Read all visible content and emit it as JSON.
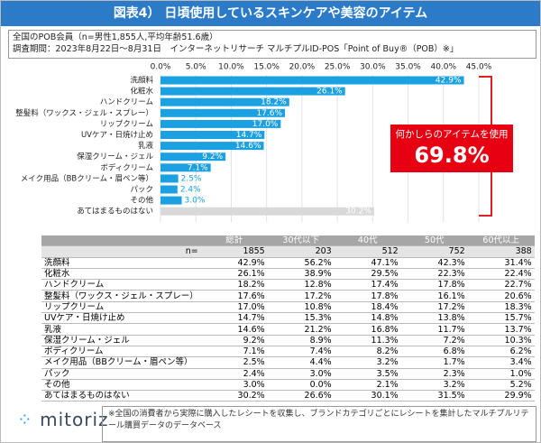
{
  "header": {
    "title": "図表4） 日頃使用しているスキンケアや美容のアイテム"
  },
  "subtitle_lines": [
    "全国のPOB会員（n=男性1,855人,平均年齢51.6歳）",
    "調査期間：2023年8月22日～8月31日　インターネットリサーチ マルチプルID-POS「Point of Buy®（POB）※」"
  ],
  "chart_data": {
    "type": "bar",
    "orientation": "horizontal",
    "categories": [
      "洗顔料",
      "化粧水",
      "ハンドクリーム",
      "整髪料（ワックス・ジェル・スプレー）",
      "リップクリーム",
      "UVケア・日焼け止め",
      "乳液",
      "保湿クリーム・ジェル",
      "ボディクリーム",
      "メイク用品（BBクリーム・眉ペン等）",
      "パック",
      "その他",
      "あてはまるものはない"
    ],
    "values": [
      42.9,
      26.1,
      18.2,
      17.6,
      17.0,
      14.7,
      14.6,
      9.2,
      7.1,
      2.5,
      2.4,
      3.0,
      30.2
    ],
    "value_labels": [
      "42.9%",
      "26.1%",
      "18.2%",
      "17.6%",
      "17.0%",
      "14.7%",
      "14.6%",
      "9.2%",
      "7.1%",
      "2.5%",
      "2.4%",
      "3.0%",
      "30.2%"
    ],
    "colors": [
      "#1ba1e2",
      "#1ba1e2",
      "#1ba1e2",
      "#1ba1e2",
      "#1ba1e2",
      "#1ba1e2",
      "#1ba1e2",
      "#1ba1e2",
      "#1ba1e2",
      "#1ba1e2",
      "#1ba1e2",
      "#1ba1e2",
      "#d9d9d9"
    ],
    "xlim": [
      0,
      45
    ],
    "xticks": [
      {
        "value": 0,
        "label": "0.0%"
      },
      {
        "value": 5,
        "label": "5.0%"
      },
      {
        "value": 10,
        "label": "10.0%"
      },
      {
        "value": 15,
        "label": "15.0%"
      },
      {
        "value": 20,
        "label": "20.0%"
      },
      {
        "value": 25,
        "label": "25.0%"
      },
      {
        "value": 30,
        "label": "30.0%"
      },
      {
        "value": 35,
        "label": "35.0%"
      },
      {
        "value": 40,
        "label": "40.0%"
      },
      {
        "value": 45,
        "label": "45.0%"
      }
    ],
    "grid": true
  },
  "callout": {
    "label": "何かしらのアイテムを使用",
    "value_label": "69.8%"
  },
  "table": {
    "columns": [
      "総計",
      "30代以下",
      "40代",
      "50代",
      "60代以上"
    ],
    "n_label": "n=",
    "n": [
      "1855",
      "203",
      "512",
      "752",
      "388"
    ],
    "rows": [
      [
        "洗顔料",
        "42.9%",
        "56.2%",
        "47.1%",
        "42.3%",
        "31.4%"
      ],
      [
        "化粧水",
        "26.1%",
        "38.9%",
        "29.5%",
        "22.3%",
        "22.4%"
      ],
      [
        "ハンドクリーム",
        "18.2%",
        "12.8%",
        "17.4%",
        "17.8%",
        "22.7%"
      ],
      [
        "整髪料（ワックス・ジェル・スプレー）",
        "17.6%",
        "17.2%",
        "17.8%",
        "16.1%",
        "20.6%"
      ],
      [
        "リップクリーム",
        "17.0%",
        "10.8%",
        "18.4%",
        "17.2%",
        "18.3%"
      ],
      [
        "UVケア・日焼け止め",
        "14.7%",
        "15.3%",
        "14.8%",
        "13.8%",
        "15.7%"
      ],
      [
        "乳液",
        "14.6%",
        "21.2%",
        "16.8%",
        "11.7%",
        "13.7%"
      ],
      [
        "保湿クリーム・ジェル",
        "9.2%",
        "8.9%",
        "11.3%",
        "7.2%",
        "10.3%"
      ],
      [
        "ボディクリーム",
        "7.1%",
        "7.4%",
        "8.2%",
        "6.8%",
        "6.2%"
      ],
      [
        "メイク用品（BBクリーム・眉ペン等）",
        "2.5%",
        "4.4%",
        "3.2%",
        "1.7%",
        "3.4%"
      ],
      [
        "パック",
        "2.4%",
        "3.0%",
        "3.5%",
        "2.3%",
        "1.0%"
      ],
      [
        "その他",
        "3.0%",
        "0.0%",
        "2.1%",
        "3.2%",
        "5.2%"
      ],
      [
        "あてはまるものはない",
        "30.2%",
        "26.6%",
        "30.1%",
        "31.5%",
        "29.9%"
      ]
    ]
  },
  "footer": {
    "logo": "mitoriz",
    "note": "※全国の消費者から実際に購入したレシートを収集し、ブランドカテゴリごとにレシートを集計したマルチプルリテール購買データのデータベース"
  }
}
